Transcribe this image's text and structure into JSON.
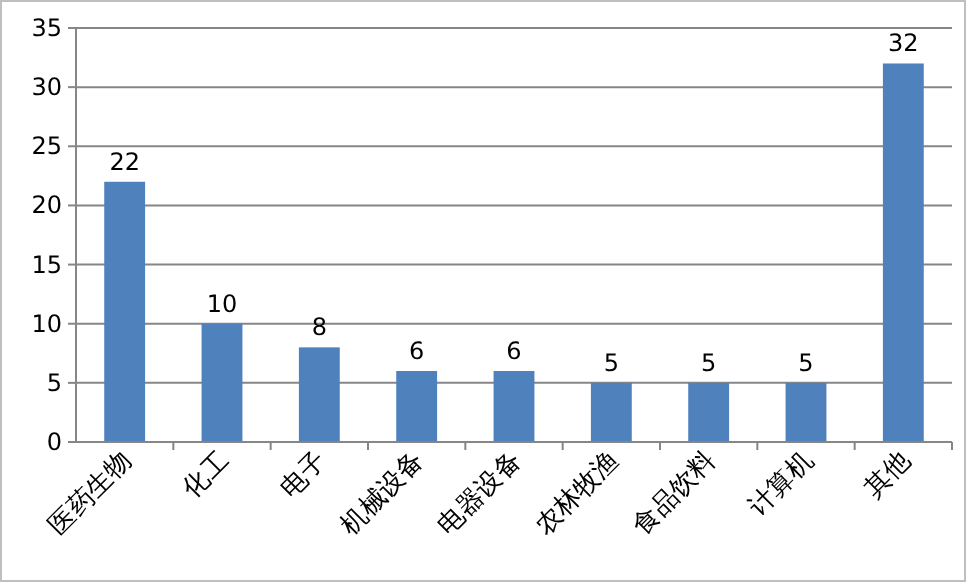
{
  "chart_data": {
    "type": "bar",
    "categories": [
      "医药生物",
      "化工",
      "电子",
      "机械设备",
      "电器设备",
      "农林牧渔",
      "食品饮料",
      "计算机",
      "其他"
    ],
    "values": [
      22,
      10,
      8,
      6,
      6,
      5,
      5,
      5,
      32
    ],
    "color": "#4f81bd",
    "ylim": [
      0,
      35
    ],
    "yticks": [
      0,
      5,
      10,
      15,
      20,
      25,
      30,
      35
    ],
    "grid": "y",
    "data_labels": true
  }
}
